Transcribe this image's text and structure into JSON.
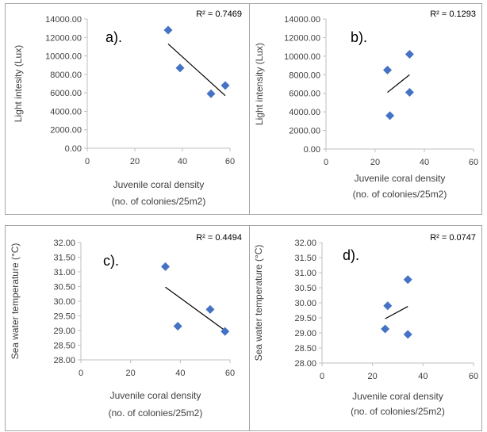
{
  "chart_data": [
    {
      "type": "scatter",
      "panel_label": "a).",
      "ylabel": "Light intesity (Lux)",
      "xlabel_lines": [
        "Juvenile coral density",
        "(no. of colonies/25m2)"
      ],
      "r2_text": "R² = 0.7469",
      "xlim": [
        0,
        60
      ],
      "ylim": [
        0,
        14000
      ],
      "x_ticks": [
        0,
        20,
        40,
        60
      ],
      "y_ticks": [
        0,
        2000,
        4000,
        6000,
        8000,
        10000,
        12000,
        14000
      ],
      "x_tick_labels": [
        "0",
        "20",
        "40",
        "60"
      ],
      "y_tick_labels": [
        "0.00",
        "2000.00",
        "4000.00",
        "6000.00",
        "8000.00",
        "10000.00",
        "12000.00",
        "14000.00"
      ],
      "points": [
        {
          "x": 34,
          "y": 12800
        },
        {
          "x": 39,
          "y": 8700
        },
        {
          "x": 52,
          "y": 5900
        },
        {
          "x": 58,
          "y": 6800
        }
      ],
      "trendline": [
        {
          "x": 34,
          "y": 11300
        },
        {
          "x": 58,
          "y": 5700
        }
      ],
      "marker_color": "#4472c4",
      "trend_color": "#000000",
      "grid": false
    },
    {
      "type": "scatter",
      "panel_label": "b).",
      "ylabel": "Light intensity (Lux)",
      "xlabel_lines": [
        "Juvenile coral density",
        "(no. of colonies/25m2)"
      ],
      "r2_text": "R² = 0.1293",
      "xlim": [
        0,
        60
      ],
      "ylim": [
        0,
        14000
      ],
      "x_ticks": [
        0,
        20,
        40,
        60
      ],
      "y_ticks": [
        0,
        2000,
        4000,
        6000,
        8000,
        10000,
        12000,
        14000
      ],
      "x_tick_labels": [
        "0",
        "20",
        "40",
        "60"
      ],
      "y_tick_labels": [
        "0.00",
        "2000.00",
        "4000.00",
        "6000.00",
        "8000.00",
        "10000.00",
        "12000.00",
        "14000.00"
      ],
      "points": [
        {
          "x": 25,
          "y": 8500
        },
        {
          "x": 26,
          "y": 3600
        },
        {
          "x": 34,
          "y": 10200
        },
        {
          "x": 34,
          "y": 6100
        }
      ],
      "trendline": [
        {
          "x": 25,
          "y": 6100
        },
        {
          "x": 34,
          "y": 8000
        }
      ],
      "marker_color": "#4472c4",
      "trend_color": "#000000",
      "grid": false
    },
    {
      "type": "scatter",
      "panel_label": "c).",
      "ylabel": "Sea water temperature (°C)",
      "xlabel_lines": [
        "Juvenile coral density",
        "(no. of colonies/25m2)"
      ],
      "r2_text": "R² = 0.4494",
      "xlim": [
        0,
        60
      ],
      "ylim": [
        28,
        32
      ],
      "x_ticks": [
        0,
        20,
        40,
        60
      ],
      "y_ticks": [
        28,
        28.5,
        29,
        29.5,
        30,
        30.5,
        31,
        31.5,
        32
      ],
      "x_tick_labels": [
        "0",
        "20",
        "40",
        "60"
      ],
      "y_tick_labels": [
        "28.00",
        "28.50",
        "29.00",
        "29.50",
        "30.00",
        "30.50",
        "31.00",
        "31.50",
        "32.00"
      ],
      "points": [
        {
          "x": 34,
          "y": 31.18
        },
        {
          "x": 39,
          "y": 29.15
        },
        {
          "x": 52,
          "y": 29.72
        },
        {
          "x": 58,
          "y": 28.97
        }
      ],
      "trendline": [
        {
          "x": 34,
          "y": 30.48
        },
        {
          "x": 58,
          "y": 29.0
        }
      ],
      "marker_color": "#4472c4",
      "trend_color": "#000000",
      "grid": false
    },
    {
      "type": "scatter",
      "panel_label": "d).",
      "ylabel": "Sea water temperature (°C)",
      "xlabel_lines": [
        "Juvenile coral density",
        "(no. of colonies/25m2)"
      ],
      "r2_text": "R² = 0.0747",
      "xlim": [
        0,
        60
      ],
      "ylim": [
        28,
        32
      ],
      "x_ticks": [
        0,
        20,
        40,
        60
      ],
      "y_ticks": [
        28,
        28.5,
        29,
        29.5,
        30,
        30.5,
        31,
        31.5,
        32
      ],
      "x_tick_labels": [
        "0",
        "20",
        "40",
        "60"
      ],
      "y_tick_labels": [
        "28.00",
        "28.50",
        "29.00",
        "29.50",
        "30.00",
        "30.50",
        "31.00",
        "31.50",
        "32.00"
      ],
      "points": [
        {
          "x": 25,
          "y": 29.13
        },
        {
          "x": 26,
          "y": 29.9
        },
        {
          "x": 34,
          "y": 30.77
        },
        {
          "x": 34,
          "y": 28.95
        }
      ],
      "trendline": [
        {
          "x": 25,
          "y": 29.47
        },
        {
          "x": 34,
          "y": 29.88
        }
      ],
      "marker_color": "#4472c4",
      "trend_color": "#000000",
      "grid": false
    }
  ]
}
